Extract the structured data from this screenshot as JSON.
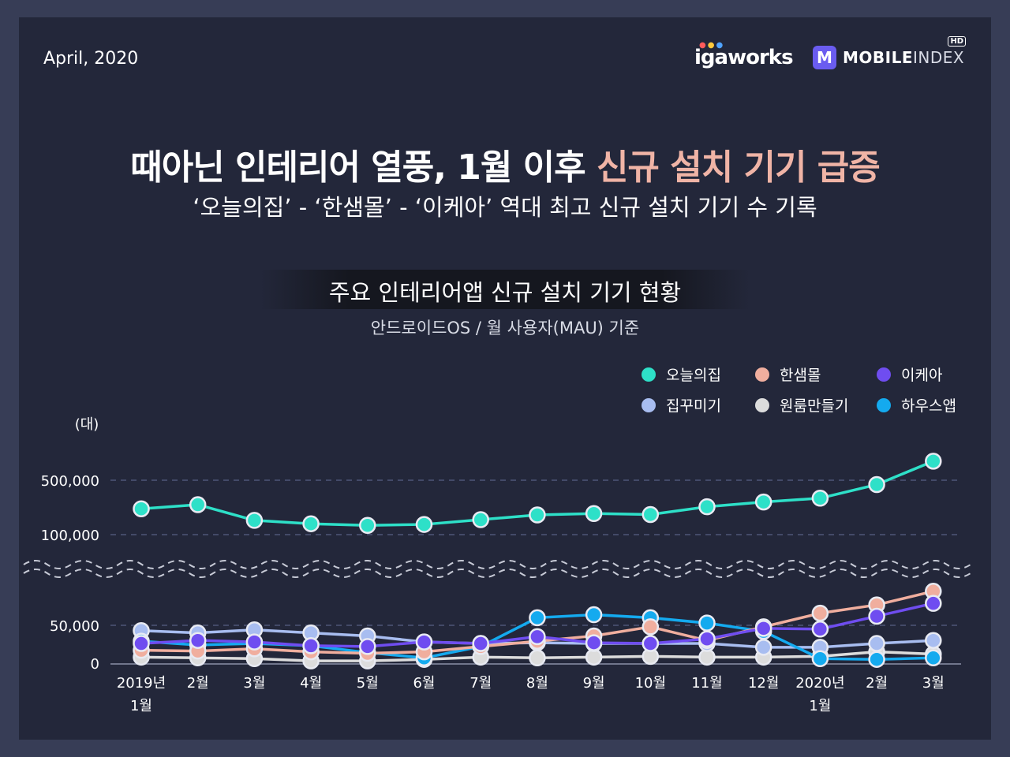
{
  "header": {
    "date": "April, 2020",
    "brand_igaworks": "igaworks",
    "brand_mobileindex_bold": "MOBILE",
    "brand_mobileindex_light": "INDEX",
    "brand_hd": "HD",
    "brand_logo_letter": "M"
  },
  "title": {
    "main": "때아닌 인테리어 열풍, 1월 이후 ",
    "highlight": "신규 설치 기기 급증",
    "sub": "‘오늘의집’ - ‘한샘몰’ - ‘이케아’ 역대 최고 신규 설치 기기 수 기록"
  },
  "chart_data": {
    "type": "line",
    "title": "주요 인테리어앱 신규 설치 기기 현황",
    "subtitle": "안드로이드OS / 월 사용자(MAU) 기준",
    "ylabel": "(대)",
    "y_scale": "broken",
    "y_ticks": [
      "500,000",
      "100,000",
      "50,000",
      "0"
    ],
    "categories": [
      [
        "2019년",
        "1월"
      ],
      [
        "2월"
      ],
      [
        "3월"
      ],
      [
        "4월"
      ],
      [
        "5월"
      ],
      [
        "6월"
      ],
      [
        "7월"
      ],
      [
        "8월"
      ],
      [
        "9월"
      ],
      [
        "10월"
      ],
      [
        "11월"
      ],
      [
        "12월"
      ],
      [
        "2020년",
        "1월"
      ],
      [
        "2월"
      ],
      [
        "3월"
      ]
    ],
    "upper_segment": {
      "series": [
        {
          "name": "오늘의집",
          "color": "#2ee0c8",
          "values": [
            290000,
            320000,
            205000,
            180000,
            168000,
            175000,
            210000,
            245000,
            255000,
            248000,
            305000,
            340000,
            368000,
            468000,
            640000
          ]
        }
      ]
    },
    "lower_segment": {
      "series": [
        {
          "name": "한샘몰",
          "color": "#f0ae9e",
          "values": [
            17000,
            16000,
            19000,
            15000,
            13000,
            15000,
            22000,
            29000,
            36000,
            48000,
            30000,
            48000,
            66000,
            77000,
            95000
          ]
        },
        {
          "name": "이케아",
          "color": "#6f4df0",
          "values": [
            26000,
            30000,
            28000,
            23000,
            22000,
            28000,
            26000,
            35000,
            27000,
            26000,
            32000,
            46000,
            45000,
            62000,
            79000
          ]
        },
        {
          "name": "집꾸미기",
          "color": "#a8bdf0",
          "values": [
            43000,
            40000,
            44000,
            40000,
            36000,
            28000,
            26000,
            27000,
            26000,
            26000,
            26000,
            21000,
            21000,
            26000,
            30000
          ]
        },
        {
          "name": "원룸만들기",
          "color": "#dcdcdc",
          "values": [
            8000,
            7000,
            6000,
            3000,
            3000,
            5000,
            8000,
            7000,
            8000,
            9000,
            8000,
            8000,
            9000,
            15000,
            12000
          ]
        },
        {
          "name": "하우스앱",
          "color": "#14aaef",
          "values": [
            29000,
            24000,
            26000,
            23000,
            14000,
            7000,
            22000,
            60000,
            64000,
            60000,
            53000,
            42000,
            6000,
            5000,
            7000
          ]
        }
      ]
    },
    "legend": [
      "오늘의집",
      "한샘몰",
      "이케아",
      "집꾸미기",
      "원룸만들기",
      "하우스앱"
    ],
    "legend_position": "top-right"
  }
}
